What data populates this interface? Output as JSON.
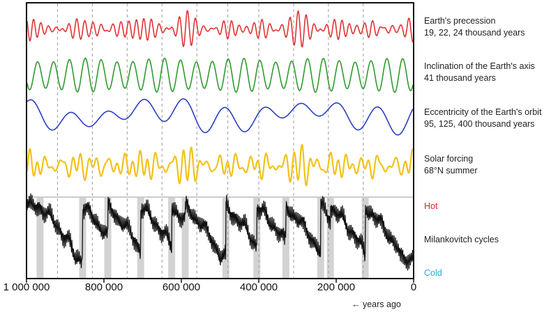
{
  "chart_data": {
    "type": "line",
    "x_axis": {
      "ticks": [
        1000000,
        800000,
        600000,
        400000,
        200000,
        0
      ],
      "tick_labels": [
        "1 000 000",
        "800 000",
        "600 000",
        "400 000",
        "200 000",
        "0"
      ],
      "range": [
        1000000,
        0
      ],
      "caption": "years ago"
    },
    "grid_x": [
      920000,
      830000,
      740000,
      650000,
      560000,
      480000,
      400000,
      310000,
      220000,
      130000
    ],
    "series": [
      {
        "name": "Earth's precession",
        "subtitle": "19, 22, 24 thousand years",
        "color": "#e03434",
        "period_kyr": [
          19,
          22,
          24
        ]
      },
      {
        "name": "Inclination of the Earth's axis",
        "subtitle": "41 thousand years",
        "color": "#2f9b2f",
        "period_kyr": [
          41
        ]
      },
      {
        "name": "Eccentricity of the Earth's orbit",
        "subtitle": "95, 125, 400 thousand years",
        "color": "#2b3fc0",
        "period_kyr": [
          95,
          125,
          400
        ]
      },
      {
        "name": "Solar forcing",
        "subtitle": "68°N summer",
        "color": "#f2c21a"
      },
      {
        "name": "Milankovitch cycles",
        "color": "#111111"
      }
    ],
    "interglacials_kyr_ago": [
      965,
      855,
      790,
      705,
      625,
      590,
      485,
      405,
      330,
      240,
      215,
      125
    ],
    "legend_hot": "Hot",
    "legend_cold": "Cold"
  }
}
